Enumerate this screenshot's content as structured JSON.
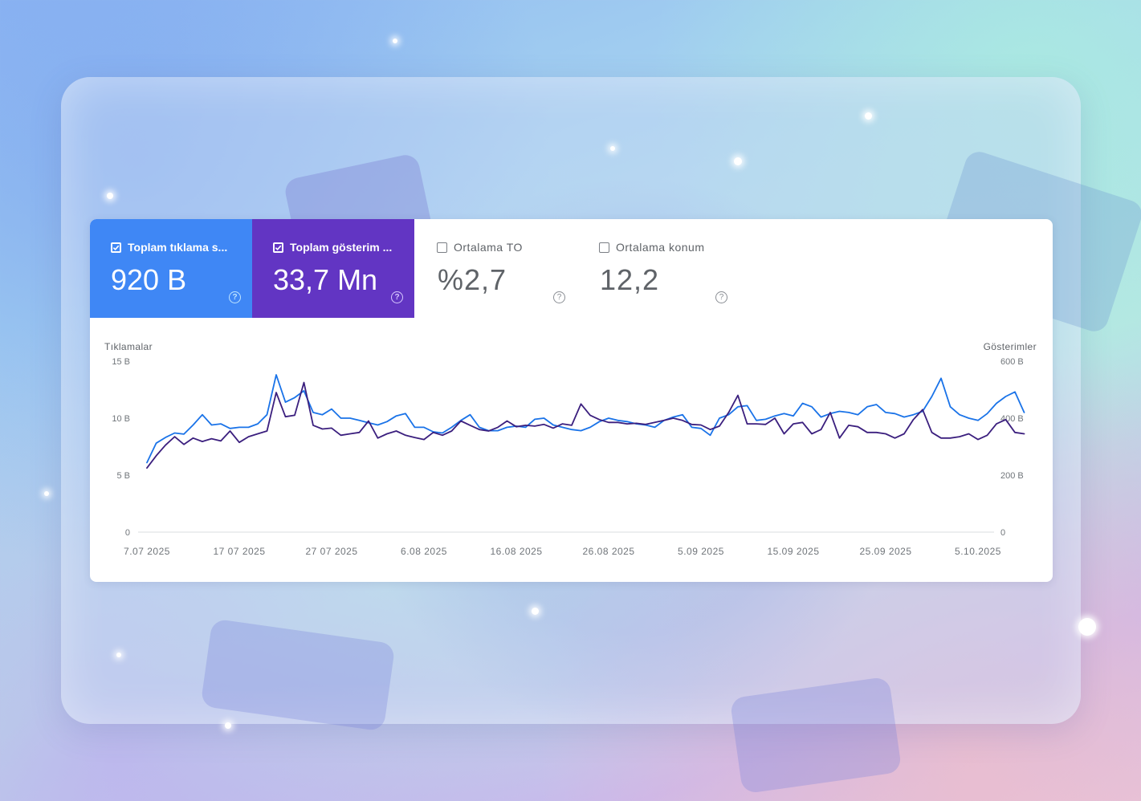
{
  "metrics": [
    {
      "label": "Toplam tıklama s...",
      "value": "920 B",
      "checked": true,
      "color": "#3f87f5"
    },
    {
      "label": "Toplam gösterim ...",
      "value": "33,7 Mn",
      "checked": true,
      "color": "#6235c3"
    },
    {
      "label": "Ortalama TO",
      "value": "%2,7",
      "checked": false
    },
    {
      "label": "Ortalama konum",
      "value": "12,2",
      "checked": false
    }
  ],
  "help_icon": "?",
  "icons": {
    "checkbox": "checkbox-icon",
    "help": "help-circle-icon"
  },
  "chart_data": {
    "type": "line",
    "ylabel": "Tıklamalar",
    "y2label": "Gösterimler",
    "y_ticks": [
      "0",
      "5 B",
      "10 B",
      "15 B"
    ],
    "y2_ticks": [
      "0",
      "200 B",
      "400 B",
      "600 B"
    ],
    "ylim": [
      0,
      15000
    ],
    "y2lim": [
      0,
      600000
    ],
    "x_tick_labels": [
      "7.07 2025",
      "17 07 2025",
      "27 07 2025",
      "6.08 2025",
      "16.08 2025",
      "26.08 2025",
      "5.09 2025",
      "15.09 2025",
      "25.09 2025",
      "5.10.2025"
    ],
    "start_date": "2025-07-07",
    "grid": "baseline only",
    "series": [
      {
        "color": "#1a73e8",
        "axis": "left",
        "values": [
          6100,
          7800,
          8300,
          8700,
          8600,
          9400,
          10300,
          9400,
          9500,
          9100,
          9200,
          9200,
          9500,
          10300,
          13800,
          11400,
          11800,
          12400,
          10500,
          10300,
          10800,
          10000,
          10000,
          9800,
          9600,
          9400,
          9700,
          10200,
          10400,
          9200,
          9200,
          8800,
          8700,
          9200,
          9800,
          10300,
          9200,
          8900,
          8900,
          9200,
          9300,
          9200,
          9900,
          10000,
          9400,
          9200,
          9000,
          8900,
          9200,
          9700,
          10000,
          9800,
          9700,
          9500,
          9400,
          9200,
          9800,
          10100,
          10300,
          9200,
          9100,
          8500,
          10000,
          10300,
          11000,
          11100,
          9800,
          9900,
          10200,
          10400,
          10200,
          11300,
          11000,
          10100,
          10400,
          10600,
          10500,
          10300,
          11000,
          11200,
          10500,
          10400,
          10100,
          10300,
          10600,
          11900,
          13500,
          11000,
          10300,
          10000,
          9800,
          10400,
          11300,
          11900,
          12300,
          10500
        ]
      },
      {
        "color": "#3b1f7e",
        "axis": "right",
        "values": [
          225000,
          268000,
          305000,
          335000,
          308000,
          330000,
          318000,
          328000,
          320000,
          355000,
          315000,
          335000,
          345000,
          355000,
          490000,
          405000,
          410000,
          525000,
          375000,
          362000,
          365000,
          340000,
          345000,
          350000,
          390000,
          330000,
          345000,
          355000,
          340000,
          332000,
          325000,
          350000,
          340000,
          355000,
          390000,
          375000,
          360000,
          355000,
          368000,
          390000,
          370000,
          375000,
          372000,
          378000,
          365000,
          380000,
          375000,
          450000,
          410000,
          395000,
          385000,
          385000,
          380000,
          382000,
          378000,
          385000,
          392000,
          400000,
          392000,
          378000,
          376000,
          360000,
          372000,
          420000,
          480000,
          380000,
          380000,
          378000,
          400000,
          345000,
          380000,
          385000,
          345000,
          360000,
          420000,
          330000,
          375000,
          370000,
          350000,
          350000,
          345000,
          330000,
          345000,
          395000,
          430000,
          350000,
          330000,
          330000,
          335000,
          345000,
          325000,
          340000,
          380000,
          395000,
          350000,
          345000
        ]
      }
    ]
  }
}
